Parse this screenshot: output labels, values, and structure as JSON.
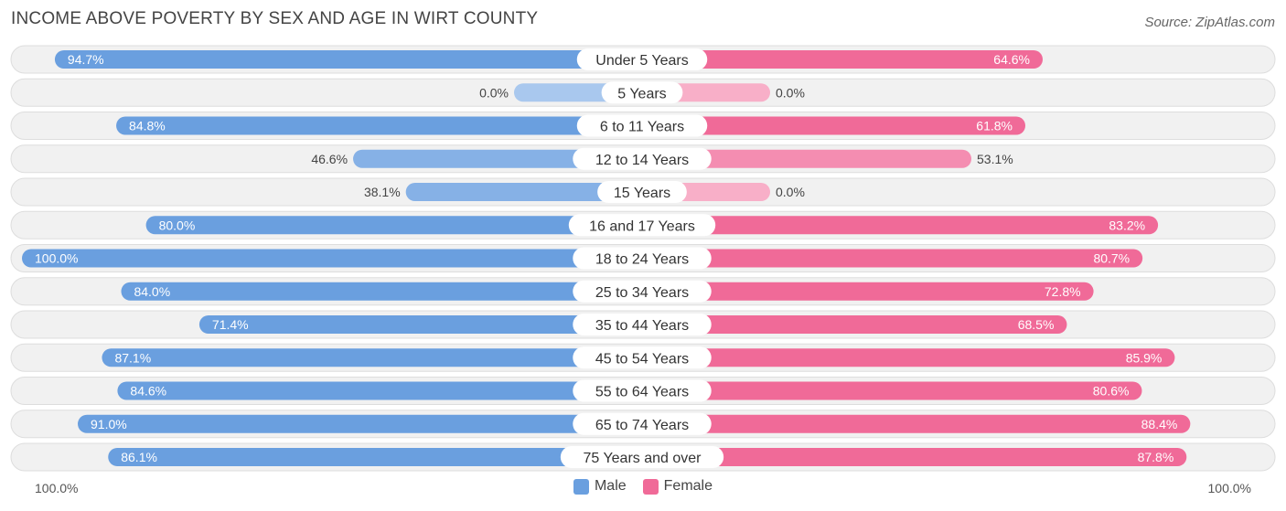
{
  "chart_data": {
    "type": "bar",
    "orientation": "horizontal-diverging",
    "title": "INCOME ABOVE POVERTY BY SEX AND AGE IN WIRT COUNTY",
    "source": "Source: ZipAtlas.com",
    "axis": {
      "left_label": "100.0%",
      "right_label": "100.0%",
      "range": [
        0,
        100
      ]
    },
    "categories": [
      "Under 5 Years",
      "5 Years",
      "6 to 11 Years",
      "12 to 14 Years",
      "15 Years",
      "16 and 17 Years",
      "18 to 24 Years",
      "25 to 34 Years",
      "35 to 44 Years",
      "45 to 54 Years",
      "55 to 64 Years",
      "65 to 74 Years",
      "75 Years and over"
    ],
    "series": [
      {
        "name": "Male",
        "color": "#6a9fdf",
        "light_color": "#a9c8ee",
        "values": [
          94.7,
          0.0,
          84.8,
          46.6,
          38.1,
          80.0,
          100.0,
          84.0,
          71.4,
          87.1,
          84.6,
          91.0,
          86.1
        ],
        "labels": [
          "94.7%",
          "0.0%",
          "84.8%",
          "46.6%",
          "38.1%",
          "80.0%",
          "100.0%",
          "84.0%",
          "71.4%",
          "87.1%",
          "84.6%",
          "91.0%",
          "86.1%"
        ]
      },
      {
        "name": "Female",
        "color": "#f06a98",
        "light_color": "#f8afc8",
        "values": [
          64.6,
          0.0,
          61.8,
          53.1,
          0.0,
          83.2,
          80.7,
          72.8,
          68.5,
          85.9,
          80.6,
          88.4,
          87.8
        ],
        "labels": [
          "64.6%",
          "0.0%",
          "61.8%",
          "53.1%",
          "0.0%",
          "83.2%",
          "80.7%",
          "72.8%",
          "68.5%",
          "85.9%",
          "80.6%",
          "88.4%",
          "87.8%"
        ]
      }
    ],
    "legend": [
      "Male",
      "Female"
    ],
    "legend_position": "bottom-center"
  }
}
